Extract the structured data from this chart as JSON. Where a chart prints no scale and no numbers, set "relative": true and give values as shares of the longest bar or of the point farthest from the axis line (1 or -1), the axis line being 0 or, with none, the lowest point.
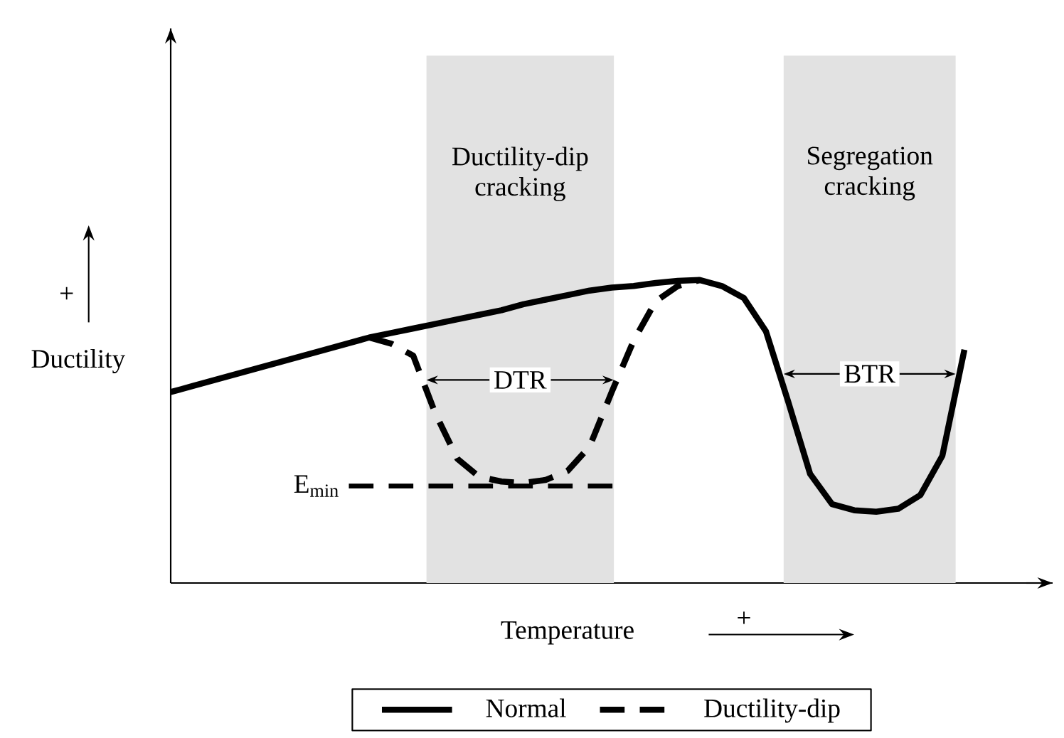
{
  "chart_data": {
    "type": "line",
    "relative": true,
    "xlabel": "Temperature",
    "ylabel": "Ductility",
    "legend": "bottom",
    "categories": [
      null,
      null,
      null,
      null,
      null,
      null,
      null,
      null,
      null,
      null,
      null,
      null,
      null,
      null,
      null,
      null,
      null,
      null,
      null,
      null,
      null,
      null,
      null,
      null,
      null,
      null,
      null,
      null,
      null,
      null,
      null,
      null,
      null,
      null,
      null,
      null,
      null
    ],
    "series": [
      {
        "name": "Normal",
        "color": "#000000",
        "line_style": "solid",
        "values": [
          0.63,
          0.65,
          0.67,
          0.69,
          0.71,
          0.73,
          0.75,
          0.77,
          0.79,
          0.81,
          0.825,
          0.84,
          0.855,
          0.87,
          0.885,
          0.9,
          0.92,
          0.935,
          0.95,
          0.965,
          0.975,
          0.98,
          0.99,
          0.997,
          1.0,
          0.98,
          0.94,
          0.83,
          0.6,
          0.36,
          0.26,
          0.24,
          0.235,
          0.245,
          0.29,
          0.42,
          0.77
        ]
      },
      {
        "name": "Ductility-dip",
        "color": "#000000",
        "line_style": "dashed",
        "values": [
          null,
          null,
          null,
          null,
          null,
          null,
          null,
          null,
          null,
          0.81,
          0.79,
          0.75,
          0.56,
          0.41,
          0.35,
          0.335,
          0.33,
          0.34,
          0.37,
          0.45,
          0.63,
          0.8,
          0.93,
          0.98,
          1.0,
          null,
          null,
          null,
          null,
          null,
          null,
          null,
          null,
          null,
          null,
          null,
          null
        ]
      }
    ],
    "ref_lines": [
      {
        "axis": "y",
        "value": 0.32,
        "label": "E$_{min}$",
        "color": "#000000",
        "line_style": "dashed"
      }
    ],
    "annotations": [
      "Ductility-dip cracking",
      "Segregation cracking",
      "DTR",
      "BTR",
      "+",
      "+"
    ]
  }
}
